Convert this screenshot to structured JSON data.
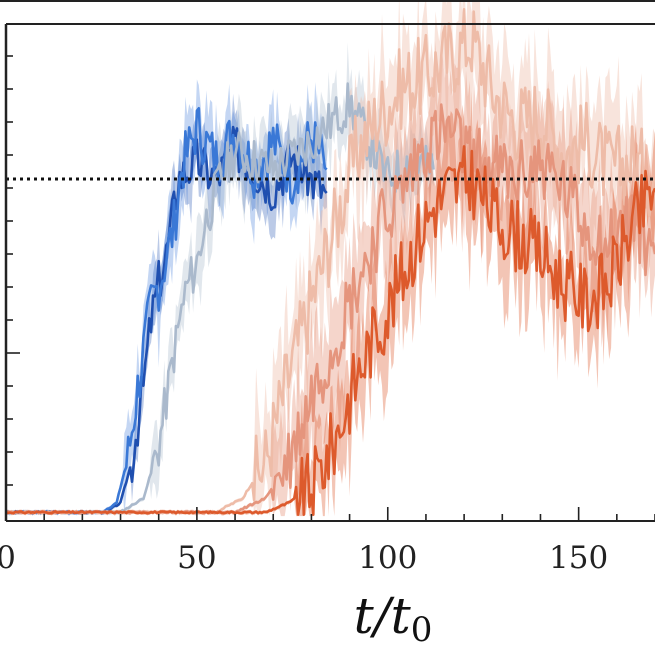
{
  "chart_data": {
    "type": "line",
    "xlabel": "t/t₀",
    "ylabel": "",
    "xlim": [
      0,
      170
    ],
    "ylim": [
      0,
      1.05
    ],
    "x_ticks": [
      0,
      50,
      100,
      150
    ],
    "reference_line": {
      "y": 0.72,
      "style": "dotted",
      "color": "#111111"
    },
    "colors": {
      "blue_dark": "#1f4fb0",
      "blue_mid": "#3a78d6",
      "blue_light": "#aab9cc",
      "orange_dark": "#dd5a2c",
      "orange_mid": "#e5957d",
      "orange_light": "#eebca8"
    },
    "series": [
      {
        "color_key": "blue_dark",
        "band_opacity": 0.3,
        "onset": 33,
        "rise_end": 45,
        "plateau": 0.74,
        "end": 84,
        "noise": 0.05,
        "band": 0.05,
        "seed": 3,
        "x": [
          0,
          26,
          30,
          33,
          36,
          38,
          40,
          42,
          44,
          45,
          50,
          55,
          60,
          65,
          70,
          75,
          80,
          84
        ],
        "y": [
          0.01,
          0.01,
          0.03,
          0.12,
          0.28,
          0.42,
          0.5,
          0.56,
          0.66,
          0.72,
          0.76,
          0.72,
          0.79,
          0.74,
          0.7,
          0.77,
          0.72,
          0.69
        ]
      },
      {
        "color_key": "blue_mid",
        "band_opacity": 0.3,
        "onset": 31,
        "rise_end": 46,
        "plateau": 0.76,
        "end": 84,
        "noise": 0.06,
        "band": 0.06,
        "seed": 7,
        "x": [
          0,
          25,
          29,
          32,
          35,
          38,
          41,
          44,
          46,
          50,
          55,
          60,
          65,
          70,
          75,
          80,
          84
        ],
        "y": [
          0.01,
          0.01,
          0.03,
          0.13,
          0.3,
          0.45,
          0.52,
          0.62,
          0.74,
          0.83,
          0.76,
          0.82,
          0.74,
          0.8,
          0.72,
          0.81,
          0.74
        ]
      },
      {
        "color_key": "blue_light",
        "band_opacity": 0.35,
        "onset": 38,
        "rise_end": 52,
        "plateau": 0.75,
        "end": 112,
        "noise": 0.05,
        "band": 0.06,
        "seed": 11,
        "x": [
          0,
          30,
          36,
          40,
          44,
          47,
          50,
          52,
          56,
          60,
          70,
          80,
          90,
          100,
          106,
          112
        ],
        "y": [
          0.01,
          0.01,
          0.04,
          0.15,
          0.35,
          0.48,
          0.54,
          0.62,
          0.72,
          0.78,
          0.74,
          0.8,
          0.88,
          0.72,
          0.76,
          0.74
        ]
      },
      {
        "color_key": "orange_light",
        "band_opacity": 0.4,
        "onset": 65,
        "rise_end": 98,
        "plateau": 0.86,
        "end": 170,
        "noise": 0.09,
        "band": 0.1,
        "seed": 17,
        "x": [
          0,
          55,
          62,
          68,
          74,
          80,
          86,
          92,
          98,
          104,
          110,
          116,
          122,
          128,
          134,
          140,
          146,
          152,
          158,
          164,
          170
        ],
        "y": [
          0.01,
          0.01,
          0.04,
          0.12,
          0.3,
          0.46,
          0.62,
          0.78,
          0.86,
          0.92,
          0.94,
          0.98,
          1.02,
          0.9,
          0.84,
          0.86,
          0.78,
          0.8,
          0.74,
          0.76,
          0.72
        ]
      },
      {
        "color_key": "orange_mid",
        "band_opacity": 0.4,
        "onset": 70,
        "rise_end": 110,
        "plateau": 0.78,
        "end": 170,
        "noise": 0.08,
        "band": 0.1,
        "seed": 23,
        "x": [
          0,
          60,
          68,
          74,
          80,
          86,
          92,
          98,
          104,
          110,
          116,
          122,
          128,
          134,
          140,
          146,
          152,
          158,
          164,
          170
        ],
        "y": [
          0.01,
          0.01,
          0.04,
          0.12,
          0.26,
          0.38,
          0.5,
          0.62,
          0.7,
          0.8,
          0.82,
          0.76,
          0.74,
          0.72,
          0.76,
          0.7,
          0.62,
          0.58,
          0.64,
          0.56
        ]
      },
      {
        "color_key": "orange_dark",
        "band_opacity": 0.35,
        "onset": 76,
        "rise_end": 116,
        "plateau": 0.7,
        "end": 170,
        "noise": 0.08,
        "band": 0.09,
        "seed": 31,
        "x": [
          0,
          68,
          74,
          80,
          86,
          92,
          96,
          100,
          104,
          108,
          112,
          116,
          122,
          128,
          134,
          140,
          146,
          152,
          158,
          164,
          170
        ],
        "y": [
          0.01,
          0.01,
          0.03,
          0.06,
          0.16,
          0.3,
          0.38,
          0.44,
          0.52,
          0.6,
          0.66,
          0.7,
          0.72,
          0.64,
          0.6,
          0.56,
          0.5,
          0.46,
          0.5,
          0.62,
          0.7
        ]
      }
    ]
  }
}
